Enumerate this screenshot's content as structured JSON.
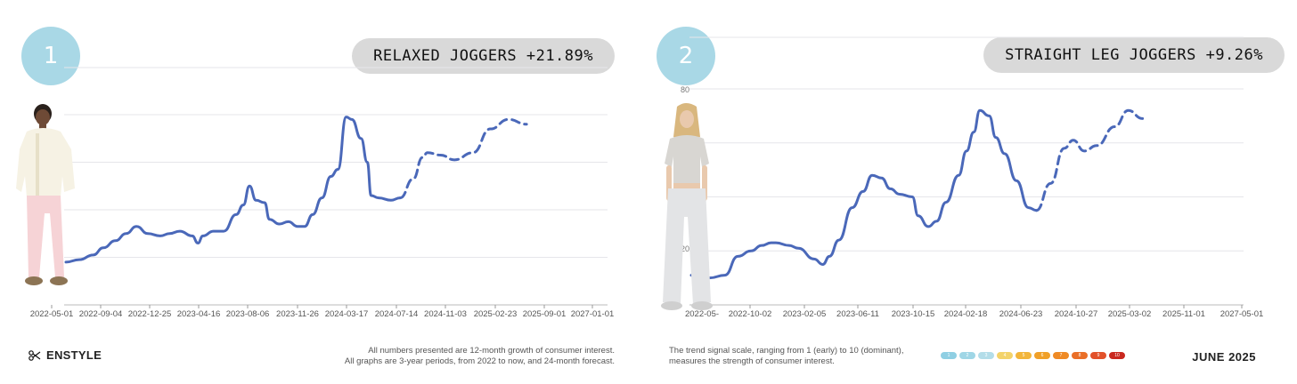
{
  "brand": {
    "name": "ENSTYLE",
    "icon": "scissors-icon"
  },
  "footnote_left": {
    "line1": "All numbers presented are 12-month growth of consumer interest.",
    "line2": "All graphs are 3-year periods, from 2022 to now, and 24-month forecast."
  },
  "footnote_right": {
    "line1": "The trend signal scale, ranging from 1 (early) to 10 (dominant),",
    "line2": "measures the strength of consumer interest."
  },
  "scale": {
    "labels": [
      "1",
      "2",
      "3",
      "4",
      "5",
      "6",
      "7",
      "8",
      "9",
      "10"
    ],
    "colors": [
      "#8fcfe3",
      "#9fd6e6",
      "#b3dde9",
      "#f3d36a",
      "#f2b53a",
      "#f0a028",
      "#ef8a24",
      "#ea6f28",
      "#e2512a",
      "#c9281f"
    ]
  },
  "report_date": "JUNE 2025",
  "panels": [
    {
      "number": "1",
      "title": "RELAXED JOGGERS +21.89%",
      "figure": "model-in-pink-joggers"
    },
    {
      "number": "2",
      "title": "STRAIGHT LEG JOGGERS +9.26%",
      "figure": "model-in-grey-joggers"
    }
  ],
  "chart_data": [
    {
      "type": "line",
      "title": "RELAXED JOGGERS +21.89%",
      "xlabel": "",
      "ylabel": "",
      "ylim": [
        0,
        80
      ],
      "yticks_shown": [
        "80"
      ],
      "grid": true,
      "x_tick_labels": [
        "2022-05-01",
        "2022-09-04",
        "2022-12-25",
        "2023-04-16",
        "2023-08-06",
        "2023-11-26",
        "2024-03-17",
        "2024-07-14",
        "2024-11-03",
        "2025-02-23",
        "2025-09-01",
        "2027-01-01"
      ],
      "x_range": [
        "2022-05-01",
        "2027-05-01"
      ],
      "series": [
        {
          "style": "solid",
          "points": [
            [
              "2022-05-01",
              18
            ],
            [
              "2022-06-15",
              19
            ],
            [
              "2022-08-01",
              21
            ],
            [
              "2022-09-04",
              24
            ],
            [
              "2022-10-15",
              27
            ],
            [
              "2022-11-20",
              30
            ],
            [
              "2022-12-25",
              33
            ],
            [
              "2023-02-01",
              30
            ],
            [
              "2023-03-15",
              29
            ],
            [
              "2023-04-16",
              30
            ],
            [
              "2023-05-20",
              31
            ],
            [
              "2023-07-01",
              29
            ],
            [
              "2023-07-20",
              26
            ],
            [
              "2023-08-06",
              29
            ],
            [
              "2023-09-10",
              31
            ],
            [
              "2023-10-15",
              31
            ],
            [
              "2023-11-26",
              38
            ],
            [
              "2023-12-20",
              42
            ],
            [
              "2024-01-10",
              50
            ],
            [
              "2024-02-01",
              44
            ],
            [
              "2024-03-01",
              43
            ],
            [
              "2024-03-17",
              36
            ],
            [
              "2024-04-20",
              34
            ],
            [
              "2024-05-20",
              35
            ],
            [
              "2024-06-20",
              33
            ],
            [
              "2024-07-14",
              33
            ],
            [
              "2024-08-10",
              38
            ],
            [
              "2024-09-10",
              45
            ],
            [
              "2024-10-10",
              54
            ],
            [
              "2024-11-03",
              57
            ],
            [
              "2024-12-01",
              79
            ],
            [
              "2024-12-20",
              78
            ],
            [
              "2025-01-20",
              70
            ],
            [
              "2025-02-10",
              60
            ],
            [
              "2025-02-23",
              46
            ],
            [
              "2025-03-20",
              45
            ],
            [
              "2025-05-01",
              44
            ],
            [
              "2025-06-01",
              45
            ]
          ]
        },
        {
          "style": "dashed",
          "points": [
            [
              "2025-06-01",
              45
            ],
            [
              "2025-07-15",
              53
            ],
            [
              "2025-08-15",
              62
            ],
            [
              "2025-09-01",
              64
            ],
            [
              "2025-10-15",
              63
            ],
            [
              "2025-12-01",
              61
            ],
            [
              "2026-02-01",
              64
            ],
            [
              "2026-04-01",
              74
            ],
            [
              "2026-06-01",
              78
            ],
            [
              "2026-08-01",
              76
            ]
          ]
        }
      ]
    },
    {
      "type": "line",
      "title": "STRAIGHT LEG JOGGERS +9.26%",
      "xlabel": "",
      "ylabel": "",
      "ylim": [
        0,
        80
      ],
      "yticks_shown": [
        "80",
        "20"
      ],
      "grid": true,
      "x_tick_labels": [
        "2022-05-",
        "2022-10-02",
        "2023-02-05",
        "2023-06-11",
        "2023-10-15",
        "2024-02-18",
        "2024-06-23",
        "2024-10-27",
        "2025-03-02",
        "2025-11-01",
        "2027-05-01"
      ],
      "x_range": [
        "2022-05-01",
        "2027-05-01"
      ],
      "series": [
        {
          "style": "solid",
          "points": [
            [
              "2022-05-01",
              11
            ],
            [
              "2022-07-01",
              10
            ],
            [
              "2022-08-20",
              11
            ],
            [
              "2022-10-02",
              18
            ],
            [
              "2022-11-15",
              20
            ],
            [
              "2022-12-20",
              22
            ],
            [
              "2023-01-20",
              23
            ],
            [
              "2023-02-05",
              23
            ],
            [
              "2023-03-20",
              22
            ],
            [
              "2023-04-20",
              21
            ],
            [
              "2023-06-11",
              17
            ],
            [
              "2023-07-10",
              15
            ],
            [
              "2023-08-01",
              18
            ],
            [
              "2023-09-01",
              24
            ],
            [
              "2023-10-15",
              36
            ],
            [
              "2023-11-20",
              42
            ],
            [
              "2023-12-20",
              48
            ],
            [
              "2024-01-20",
              47
            ],
            [
              "2024-02-18",
              43
            ],
            [
              "2024-03-20",
              41
            ],
            [
              "2024-05-01",
              40
            ],
            [
              "2024-05-20",
              33
            ],
            [
              "2024-06-23",
              29
            ],
            [
              "2024-07-20",
              31
            ],
            [
              "2024-08-20",
              38
            ],
            [
              "2024-10-01",
              48
            ],
            [
              "2024-10-27",
              57
            ],
            [
              "2024-11-20",
              64
            ],
            [
              "2024-12-10",
              72
            ],
            [
              "2025-01-10",
              70
            ],
            [
              "2025-02-01",
              62
            ],
            [
              "2025-03-02",
              56
            ],
            [
              "2025-04-10",
              46
            ],
            [
              "2025-05-20",
              36
            ],
            [
              "2025-06-15",
              35
            ]
          ]
        },
        {
          "style": "dashed",
          "points": [
            [
              "2025-06-15",
              35
            ],
            [
              "2025-08-01",
              45
            ],
            [
              "2025-09-15",
              58
            ],
            [
              "2025-10-15",
              61
            ],
            [
              "2025-11-20",
              57
            ],
            [
              "2026-01-01",
              59
            ],
            [
              "2026-03-01",
              66
            ],
            [
              "2026-04-15",
              72
            ],
            [
              "2026-06-01",
              69
            ]
          ]
        }
      ]
    }
  ]
}
